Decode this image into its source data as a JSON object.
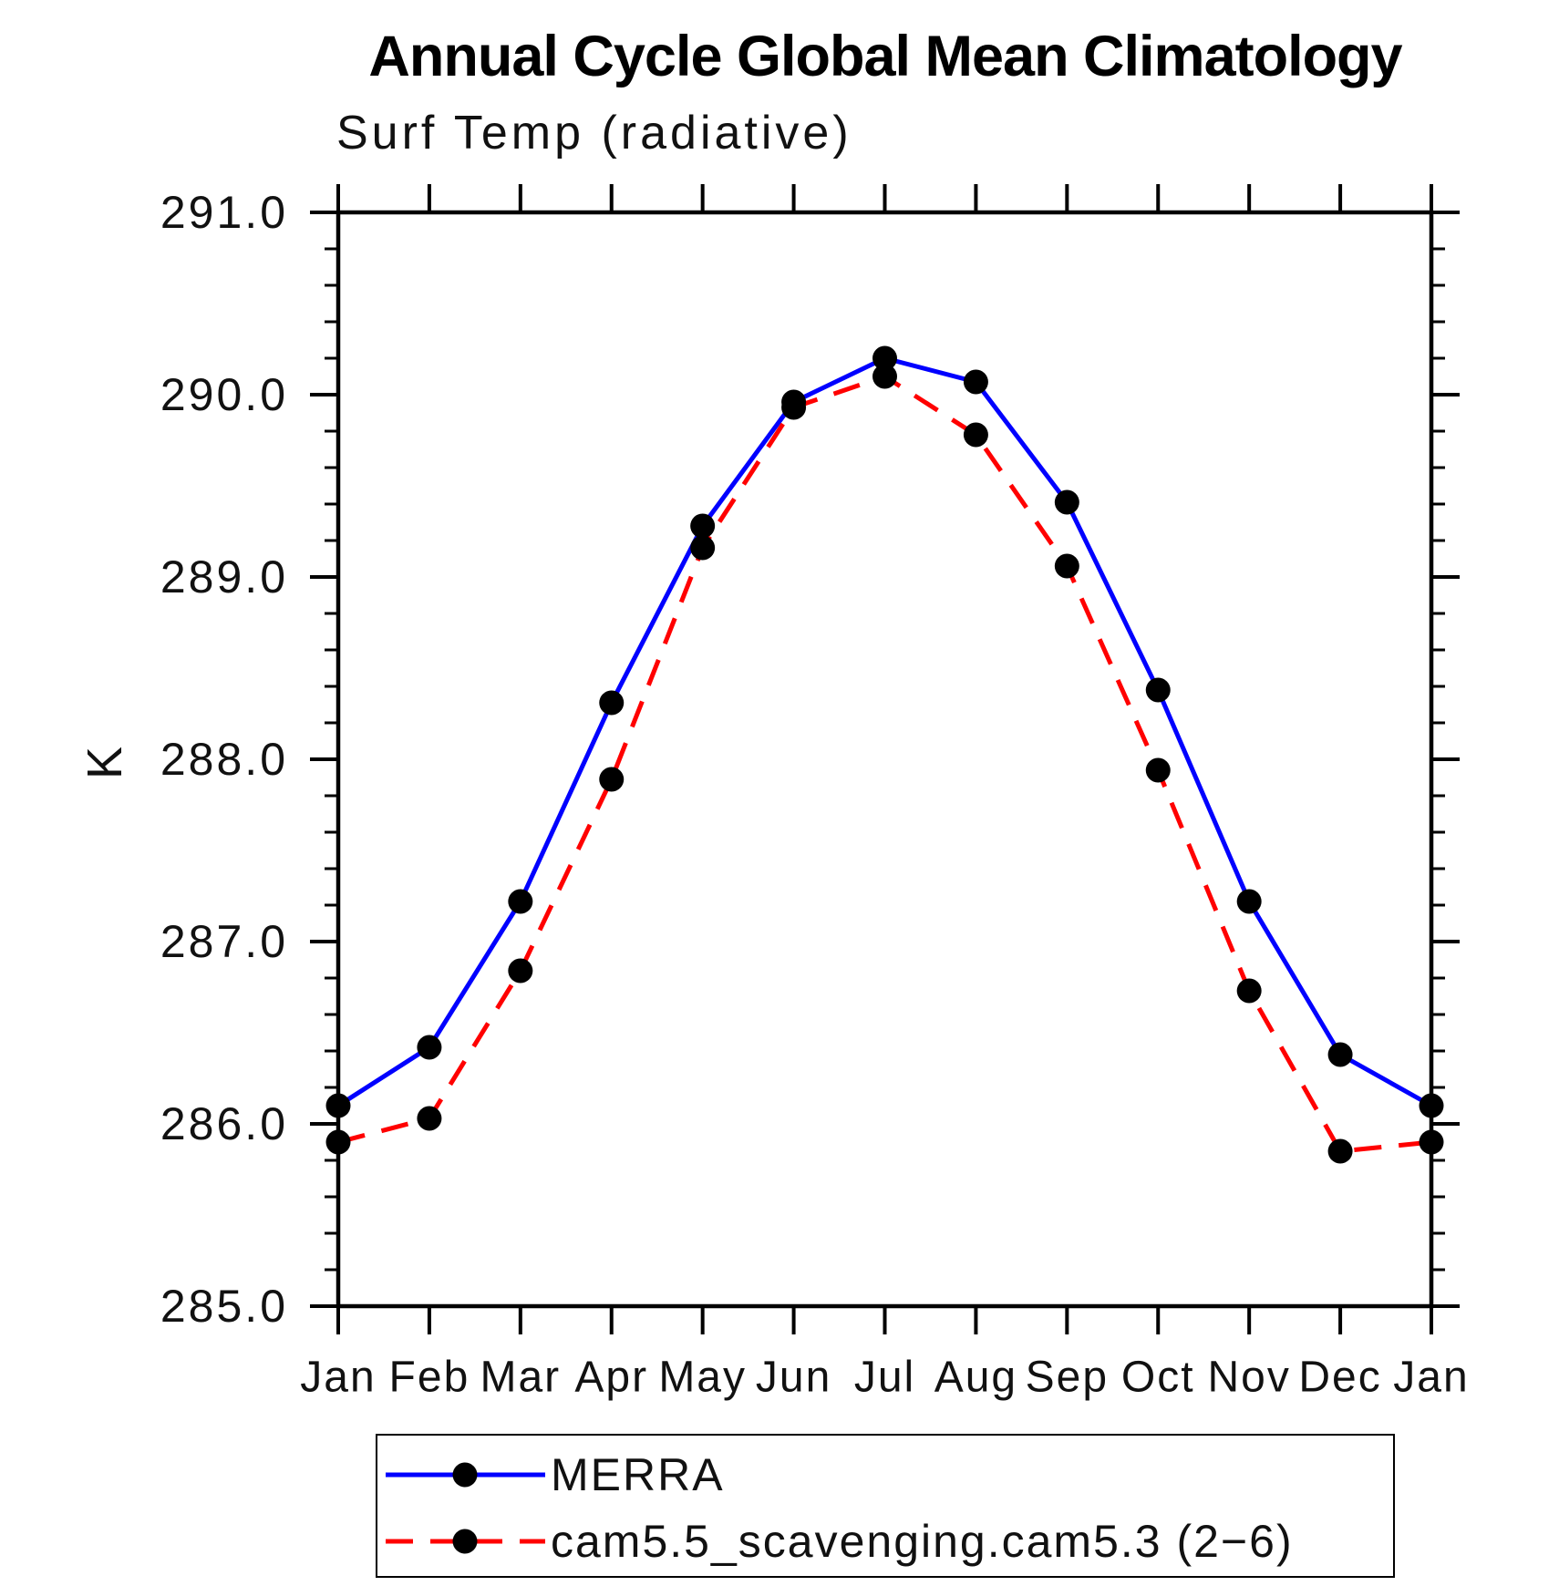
{
  "chart_data": {
    "type": "line",
    "title": "Annual Cycle Global Mean Climatology",
    "subtitle": "Surf Temp (radiative)",
    "ylabel": "K",
    "xlabel": "",
    "ylim": [
      285.0,
      291.0
    ],
    "y_major_step": 1.0,
    "y_minor_step": 0.2,
    "y_tick_decimals": 1,
    "grid": false,
    "legend_position": "bottom",
    "axis_color": "#000000",
    "marker_color": "#000000",
    "categories": [
      "Jan",
      "Feb",
      "Mar",
      "Apr",
      "May",
      "Jun",
      "Jul",
      "Aug",
      "Sep",
      "Oct",
      "Nov",
      "Dec",
      "Jan"
    ],
    "series": [
      {
        "name": "MERRA",
        "color": "#0000ff",
        "style": "solid",
        "marker": "circle",
        "values": [
          286.1,
          286.42,
          287.22,
          288.31,
          289.28,
          289.96,
          290.2,
          290.07,
          289.41,
          288.38,
          287.22,
          286.38,
          286.1
        ]
      },
      {
        "name": "cam5.5_scavenging.cam5.3 (2−6)",
        "color": "#ff0000",
        "style": "dashed",
        "marker": "circle",
        "values": [
          285.9,
          286.03,
          286.84,
          287.89,
          289.16,
          289.93,
          290.1,
          289.78,
          289.06,
          287.94,
          286.73,
          285.85,
          285.9
        ]
      }
    ]
  }
}
